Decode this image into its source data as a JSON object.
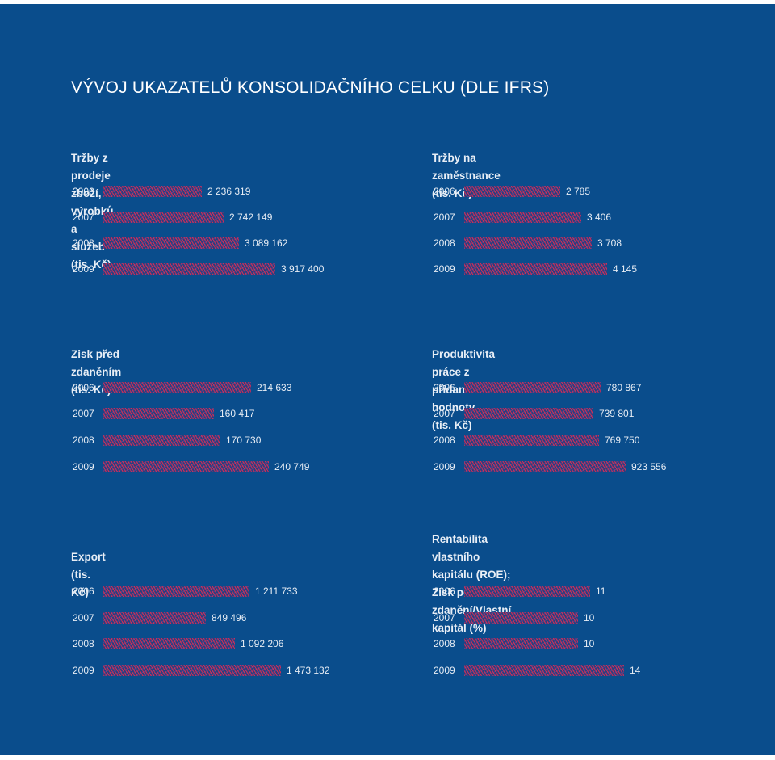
{
  "title": "VÝVOJ UKAZATELŮ KONSOLIDAČNÍHO CELKU (DLE IFRS)",
  "colors": {
    "background": "#0a4d8c",
    "bar_hatch": "#d62d55",
    "text": "#ffffff"
  },
  "chart_data": [
    {
      "type": "bar",
      "orientation": "horizontal",
      "title": "Tržby z prodeje zboží, výrobků a služeb (tis. Kč)",
      "categories": [
        "2006",
        "2007",
        "2008",
        "2009"
      ],
      "values": [
        2236319,
        2742149,
        3089162,
        3917400
      ],
      "labels": [
        "2 236 319",
        "2 742 149",
        "3 089 162",
        "3 917 400"
      ],
      "xlim": [
        0,
        3917400
      ],
      "grid": false
    },
    {
      "type": "bar",
      "orientation": "horizontal",
      "title": "Tržby na zaměstnance (tis. Kč)",
      "categories": [
        "2006",
        "2007",
        "2008",
        "2009"
      ],
      "values": [
        2785,
        3406,
        3708,
        4145
      ],
      "labels": [
        "2 785",
        "3 406",
        "3 708",
        "4 145"
      ],
      "xlim": [
        0,
        4145
      ],
      "grid": false
    },
    {
      "type": "bar",
      "orientation": "horizontal",
      "title": "Zisk před zdaněním (tis. Kč)",
      "categories": [
        "2006",
        "2007",
        "2008",
        "2009"
      ],
      "values": [
        214633,
        160417,
        170730,
        240749
      ],
      "labels": [
        "214 633",
        "160 417",
        "170 730",
        "240 749"
      ],
      "xlim": [
        0,
        240749
      ],
      "grid": false
    },
    {
      "type": "bar",
      "orientation": "horizontal",
      "title": "Produktivita práce z přidané hodnoty (tis. Kč)",
      "categories": [
        "2006",
        "2007",
        "2008",
        "2009"
      ],
      "values": [
        780867,
        739801,
        769750,
        923556
      ],
      "labels": [
        "780 867",
        "739 801",
        "769 750",
        "923 556"
      ],
      "xlim": [
        0,
        923556
      ],
      "grid": false
    },
    {
      "type": "bar",
      "orientation": "horizontal",
      "title": "Export (tis. Kč)",
      "categories": [
        "2006",
        "2007",
        "2008",
        "2009"
      ],
      "values": [
        1211733,
        849496,
        1092206,
        1473132
      ],
      "labels": [
        "1 211 733",
        "849 496",
        "1 092 206",
        "1 473 132"
      ],
      "xlim": [
        0,
        1473132
      ],
      "grid": false
    },
    {
      "type": "bar",
      "orientation": "horizontal",
      "title": "Rentabilita vlastního kapitálu (ROE); Zisk po zdanění/Vlastní kapitál (%)",
      "title_lines": [
        "Rentabilita vlastního kapitálu (ROE);",
        "Zisk po zdanění/Vlastní kapitál (%)"
      ],
      "categories": [
        "2006",
        "2007",
        "2008",
        "2009"
      ],
      "values": [
        11,
        10,
        10,
        14
      ],
      "labels": [
        "11",
        "10",
        "10",
        "14"
      ],
      "xlim": [
        0,
        14
      ],
      "grid": false
    }
  ]
}
